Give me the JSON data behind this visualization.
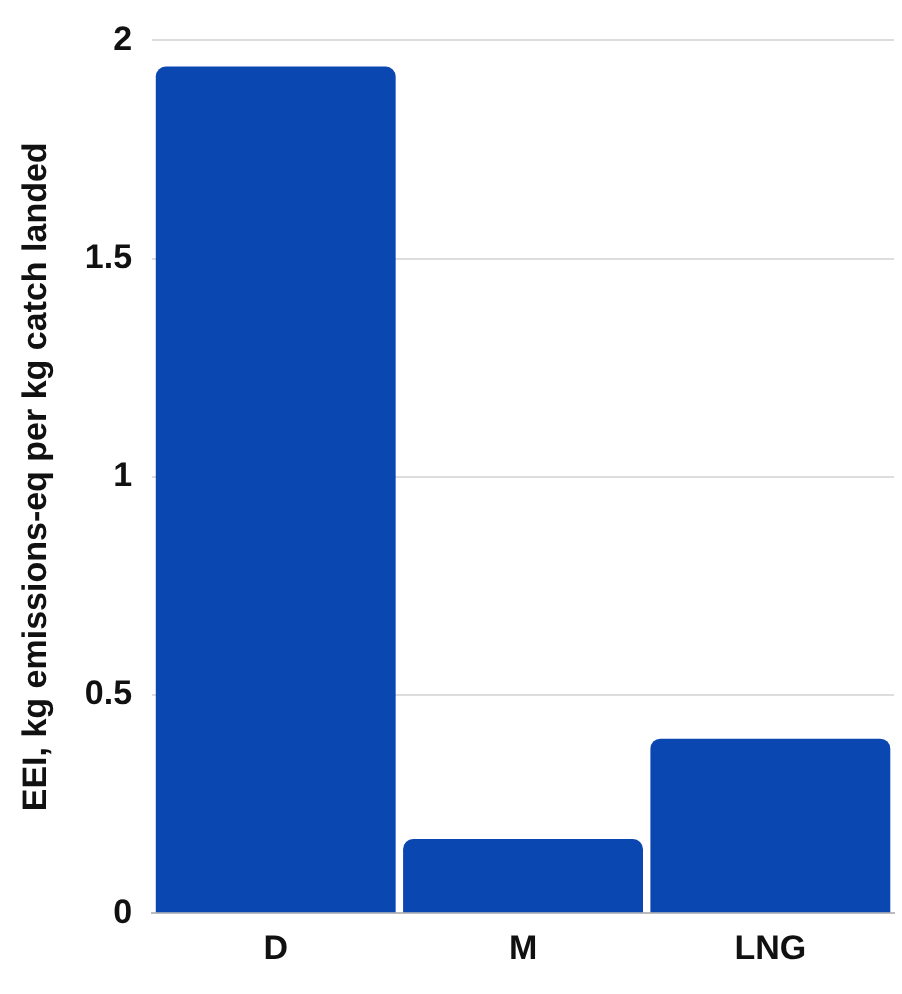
{
  "chart_data": {
    "type": "bar",
    "ylabel": "EEI, kg emissions-eq per kg catch landed",
    "categories": [
      "D",
      "M",
      "LNG"
    ],
    "values": [
      1.94,
      0.17,
      0.4
    ],
    "color": "#0a47b1",
    "ylim": [
      0,
      2
    ],
    "yticks": [
      0,
      0.5,
      1,
      1.5,
      2
    ],
    "grid": "y",
    "legend": false
  }
}
